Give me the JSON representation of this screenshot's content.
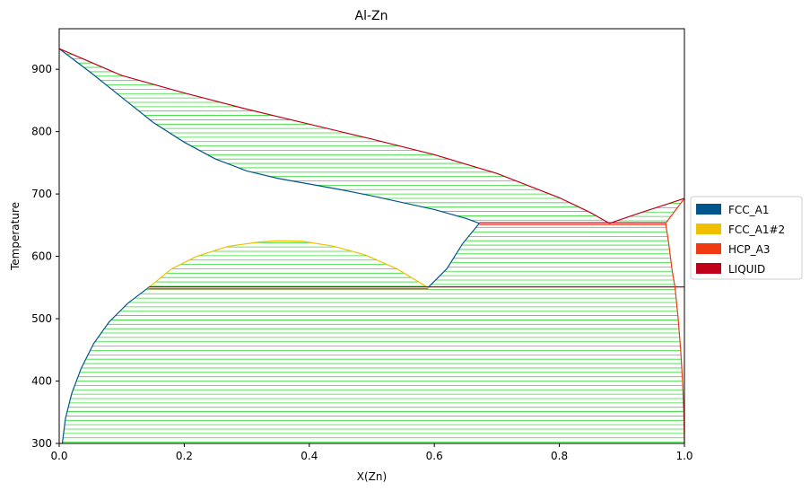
{
  "chart_data": {
    "type": "line",
    "title": "Al-Zn",
    "xlabel": "X(Zn)",
    "ylabel": "Temperature",
    "xlim": [
      0.0,
      1.0
    ],
    "ylim": [
      300,
      965
    ],
    "xticks": [
      "0.0",
      "0.2",
      "0.4",
      "0.6",
      "0.8",
      "1.0"
    ],
    "yticks": [
      "300",
      "400",
      "500",
      "600",
      "700",
      "800",
      "900"
    ],
    "grid": false,
    "legend_position": "outside-right",
    "legend": [
      {
        "name": "FCC_A1",
        "color": "#00558c"
      },
      {
        "name": "FCC_A1#2",
        "color": "#f0c000"
      },
      {
        "name": "HCP_A3",
        "color": "#f03a12"
      },
      {
        "name": "LIQUID",
        "color": "#c0001a"
      }
    ],
    "tieline_color": "#33dd33",
    "tielines": [
      {
        "T_range": [
          302,
          548
        ],
        "x_left": "fcc_left",
        "x_right": "hcp_solvus",
        "step": 7
      },
      {
        "T_range": [
          552,
          622
        ],
        "x_left": "gap_left",
        "x_right": "gap_right",
        "step": 7
      },
      {
        "T_range": [
          555,
          650
        ],
        "x_left": "fcc_solvus_upper",
        "x_right": "hcp_solvus",
        "step": 7
      },
      {
        "T_range": [
          658,
          930
        ],
        "x_left": "solidus",
        "x_right": "liquidus",
        "step": 7
      },
      {
        "T_range": [
          657,
          690
        ],
        "x_left": "liq_right",
        "x_right": "hcp_solidus",
        "step": 7
      }
    ],
    "series": [
      {
        "phase": "FCC_A1",
        "color": "#00558c",
        "points": [
          [
            0.005,
            300
          ],
          [
            0.01,
            340
          ],
          [
            0.02,
            380
          ],
          [
            0.035,
            420
          ],
          [
            0.055,
            460
          ],
          [
            0.08,
            495
          ],
          [
            0.11,
            525
          ],
          [
            0.143,
            550
          ]
        ]
      },
      {
        "phase": "FCC_A1#2",
        "color": "#f0c000",
        "points": [
          [
            0.143,
            550
          ],
          [
            0.18,
            580
          ],
          [
            0.22,
            600
          ],
          [
            0.27,
            616
          ],
          [
            0.32,
            623
          ],
          [
            0.35,
            625
          ],
          [
            0.39,
            624
          ],
          [
            0.44,
            616
          ],
          [
            0.49,
            602
          ],
          [
            0.54,
            580
          ],
          [
            0.59,
            550
          ]
        ]
      },
      {
        "phase": "FCC_A1",
        "color": "#00558c",
        "points": [
          [
            0.59,
            550
          ],
          [
            0.62,
            580
          ],
          [
            0.645,
            620
          ],
          [
            0.672,
            653
          ]
        ]
      },
      {
        "phase": "FCC_A1",
        "color": "#00558c",
        "points": [
          [
            0.0,
            933
          ],
          [
            0.05,
            895
          ],
          [
            0.1,
            855
          ],
          [
            0.15,
            815
          ],
          [
            0.2,
            783
          ],
          [
            0.25,
            756
          ],
          [
            0.3,
            737
          ],
          [
            0.35,
            725
          ],
          [
            0.4,
            716
          ],
          [
            0.45,
            707
          ],
          [
            0.5,
            697
          ],
          [
            0.55,
            686
          ],
          [
            0.6,
            675
          ],
          [
            0.65,
            661
          ],
          [
            0.672,
            653
          ]
        ]
      },
      {
        "phase": "LIQUID",
        "color": "#c0001a",
        "points": [
          [
            0.0,
            933
          ],
          [
            0.1,
            890
          ],
          [
            0.2,
            862
          ],
          [
            0.3,
            836
          ],
          [
            0.4,
            812
          ],
          [
            0.5,
            788
          ],
          [
            0.6,
            763
          ],
          [
            0.7,
            733
          ],
          [
            0.8,
            694
          ],
          [
            0.85,
            670
          ],
          [
            0.88,
            653
          ]
        ]
      },
      {
        "phase": "LIQUID",
        "color": "#c0001a",
        "points": [
          [
            0.88,
            653
          ],
          [
            0.93,
            670
          ],
          [
            0.97,
            683
          ],
          [
            1.0,
            693
          ]
        ]
      },
      {
        "phase": "LIQUID",
        "color": "#c0001a",
        "points": [
          [
            0.672,
            654
          ],
          [
            0.97,
            654
          ]
        ]
      },
      {
        "phase": "HCP_A3",
        "color": "#f03a12",
        "points": [
          [
            0.672,
            651
          ],
          [
            0.97,
            651
          ]
        ]
      },
      {
        "phase": "LIQUID",
        "color": "#c0001a",
        "points": [
          [
            0.143,
            551
          ],
          [
            0.59,
            551
          ],
          [
            1.0,
            551
          ]
        ]
      },
      {
        "phase": "HCP_A3",
        "color": "#f03a12",
        "points": [
          [
            0.143,
            548
          ],
          [
            0.59,
            548
          ]
        ]
      },
      {
        "phase": "HCP_A3",
        "color": "#f03a12",
        "points": [
          [
            0.97,
            653
          ],
          [
            1.0,
            693
          ]
        ]
      },
      {
        "phase": "HCP_A3",
        "color": "#f03a12",
        "points": [
          [
            0.97,
            653
          ],
          [
            0.975,
            620
          ],
          [
            0.98,
            580
          ],
          [
            0.985,
            550
          ],
          [
            0.99,
            500
          ],
          [
            0.994,
            450
          ],
          [
            0.997,
            400
          ],
          [
            0.999,
            350
          ],
          [
            1.0,
            300
          ]
        ]
      }
    ]
  }
}
